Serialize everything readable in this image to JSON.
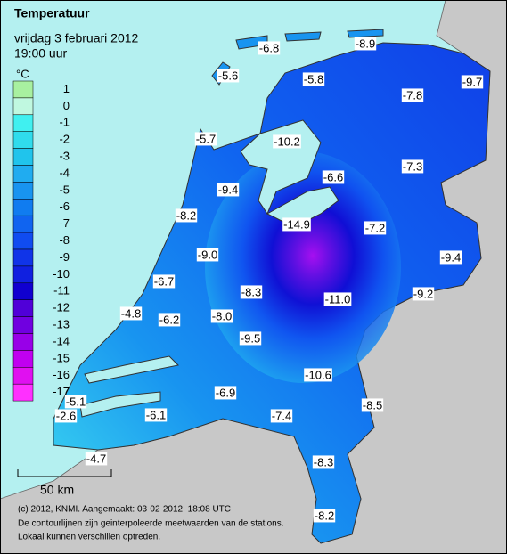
{
  "header": {
    "title": "Temperatuur",
    "date": "vrijdag 3 februari 2012",
    "time": "19:00 uur"
  },
  "legend": {
    "unit": "°C",
    "items": [
      {
        "label": "1",
        "color": "#a8f0a0"
      },
      {
        "label": "0",
        "color": "#c0f8e0"
      },
      {
        "label": "-1",
        "color": "#40f0f0"
      },
      {
        "label": "-2",
        "color": "#30dcec"
      },
      {
        "label": "-3",
        "color": "#20c4ec"
      },
      {
        "label": "-4",
        "color": "#20acf0"
      },
      {
        "label": "-5",
        "color": "#1894f0"
      },
      {
        "label": "-6",
        "color": "#107cf0"
      },
      {
        "label": "-7",
        "color": "#1064f0"
      },
      {
        "label": "-8",
        "color": "#104cf0"
      },
      {
        "label": "-9",
        "color": "#1034e8"
      },
      {
        "label": "-10",
        "color": "#1020e0"
      },
      {
        "label": "-11",
        "color": "#1000d0"
      },
      {
        "label": "-12",
        "color": "#5000d8"
      },
      {
        "label": "-13",
        "color": "#7000e0"
      },
      {
        "label": "-14",
        "color": "#9800e8"
      },
      {
        "label": "-15",
        "color": "#c000f0"
      },
      {
        "label": "-16",
        "color": "#e010f0"
      },
      {
        "label": "-17",
        "color": "#ff30ff"
      }
    ]
  },
  "stations": [
    "-6.8",
    "-8.9",
    "-5.6",
    "-5.8",
    "-9.7",
    "-7.8",
    "-5.7",
    "-10.2",
    "-7.3",
    "-6.6",
    "-9.4",
    "-8.2",
    "-14.9",
    "-7.2",
    "-9.0",
    "-9.4",
    "-6.7",
    "-8.3",
    "-9.2",
    "-11.0",
    "-4.8",
    "-6.2",
    "-8.0",
    "-9.5",
    "-10.6",
    "-6.9",
    "-8.5",
    "-5.1",
    "-2.6",
    "-6.1",
    "-7.4",
    "-8.3",
    "-4.7",
    "-8.2"
  ],
  "scale": "50 km",
  "footer": [
    "(c) 2012, KNMI. Aangemaakt: 03-02-2012, 18:08 UTC",
    "De contourlijnen zijn geinterpoleerde meetwaarden van de stations.",
    "Lokaal kunnen verschillen optreden."
  ]
}
